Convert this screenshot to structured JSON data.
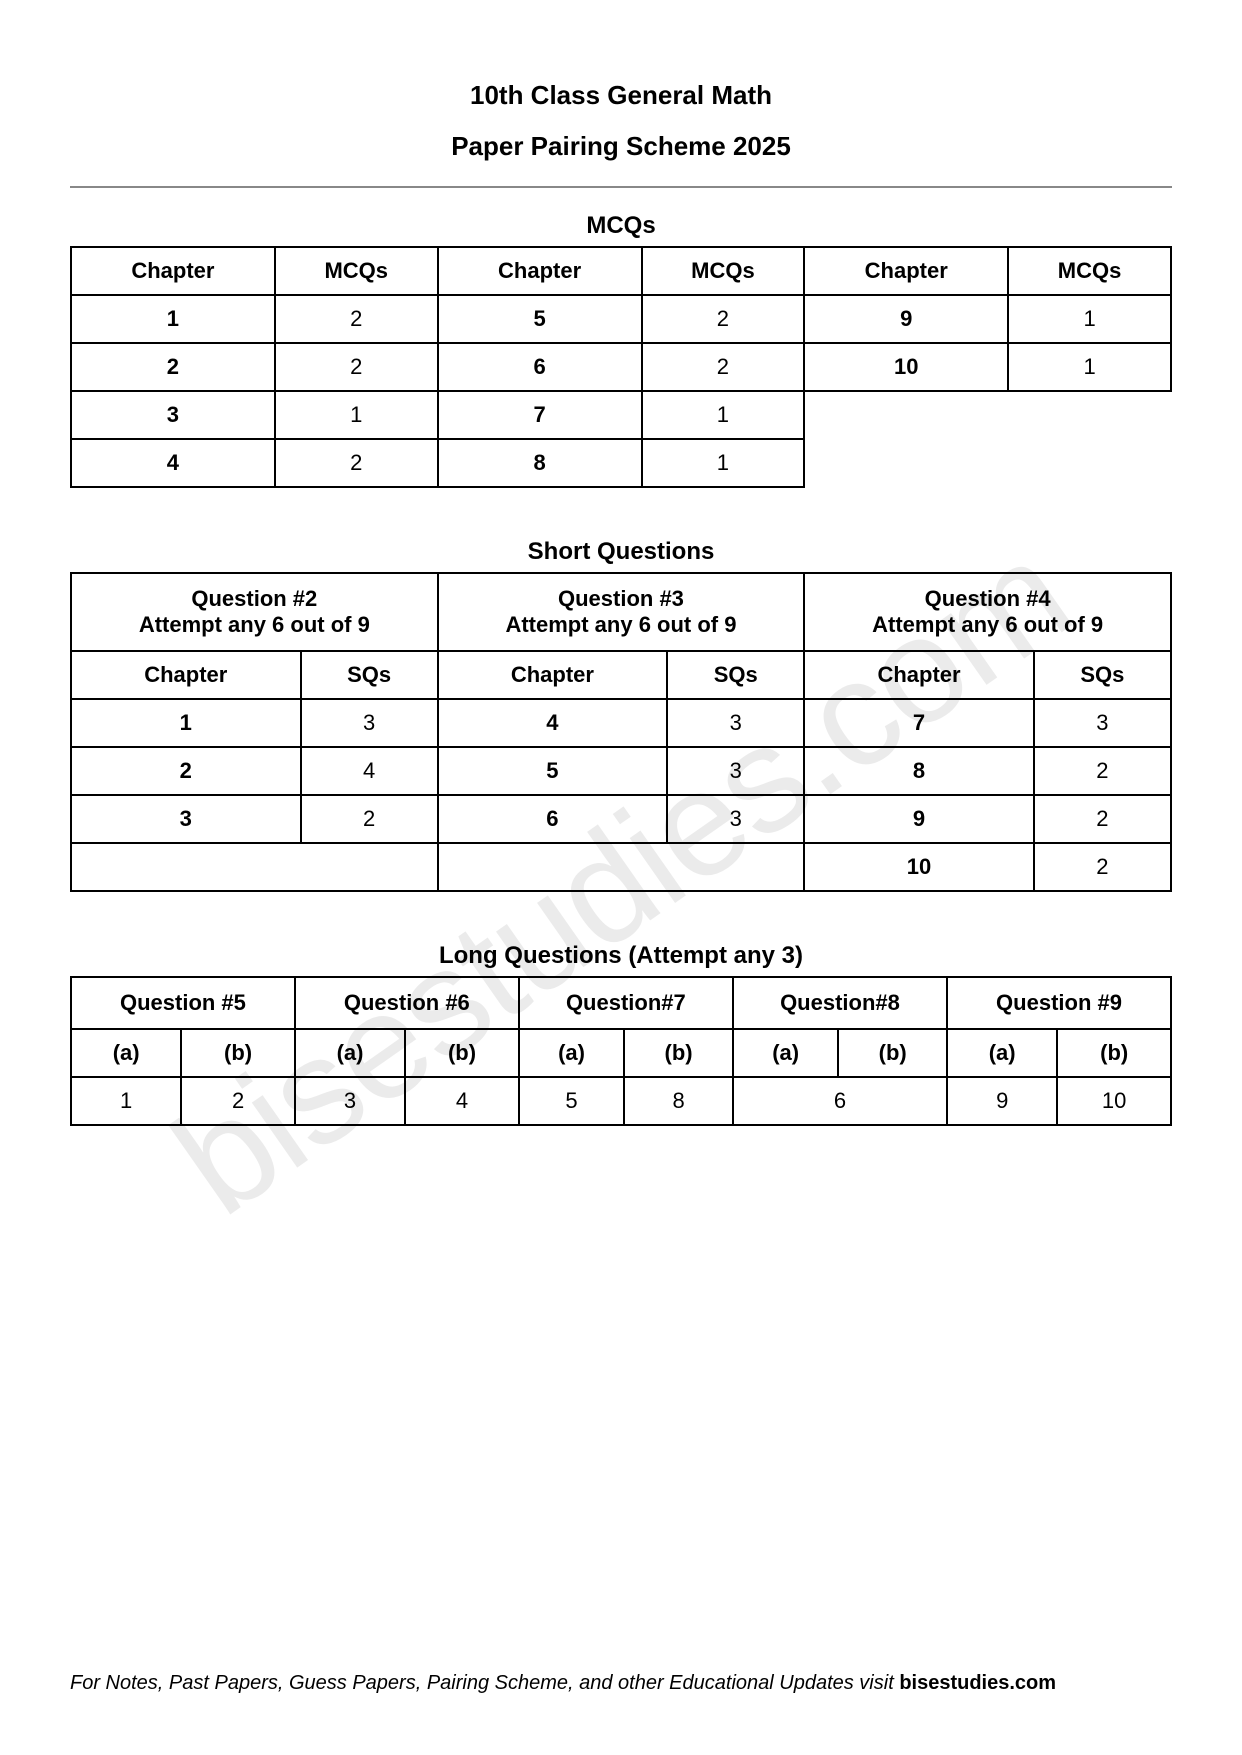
{
  "header": {
    "title": "10th Class General Math",
    "subtitle": "Paper Pairing Scheme 2025"
  },
  "watermark": "bisestudies.com",
  "mcqs": {
    "section_title": "MCQs",
    "columns": [
      "Chapter",
      "MCQs",
      "Chapter",
      "MCQs",
      "Chapter",
      "MCQs"
    ],
    "rows": [
      [
        "1",
        "2",
        "5",
        "2",
        "9",
        "1"
      ],
      [
        "2",
        "2",
        "6",
        "2",
        "10",
        "1"
      ],
      [
        "3",
        "1",
        "7",
        "1",
        "",
        ""
      ],
      [
        "4",
        "2",
        "8",
        "1",
        "",
        ""
      ]
    ]
  },
  "short": {
    "section_title": "Short Questions",
    "groups": [
      {
        "title": "Question #2",
        "sub": "Attempt any 6 out of 9"
      },
      {
        "title": "Question #3",
        "sub": "Attempt any 6 out of 9"
      },
      {
        "title": "Question #4",
        "sub": "Attempt any 6 out of 9"
      }
    ],
    "columns": [
      "Chapter",
      "SQs",
      "Chapter",
      "SQs",
      "Chapter",
      "SQs"
    ],
    "rows": [
      [
        "1",
        "3",
        "4",
        "3",
        "7",
        "3"
      ],
      [
        "2",
        "4",
        "5",
        "3",
        "8",
        "2"
      ],
      [
        "3",
        "2",
        "6",
        "3",
        "9",
        "2"
      ],
      [
        "",
        "",
        "",
        "",
        "10",
        "2"
      ]
    ]
  },
  "long": {
    "section_title": "Long Questions (Attempt any 3)",
    "questions": [
      "Question #5",
      "Question #6",
      "Question#7",
      "Question#8",
      "Question #9"
    ],
    "sub": [
      "(a)",
      "(b)",
      "(a)",
      "(b)",
      "(a)",
      "(b)",
      "(a)",
      "(b)",
      "(a)",
      "(b)"
    ],
    "values": [
      "1",
      "2",
      "3",
      "4",
      "5",
      "8",
      "6",
      "9",
      "10"
    ]
  },
  "footer": {
    "text": "For Notes, Past Papers, Guess Papers, Pairing Scheme, and other Educational Updates visit ",
    "site": "bisestudies.com"
  },
  "style": {
    "border_color": "#000000",
    "background": "#ffffff",
    "watermark_color": "rgba(0,0,0,0.08)"
  }
}
